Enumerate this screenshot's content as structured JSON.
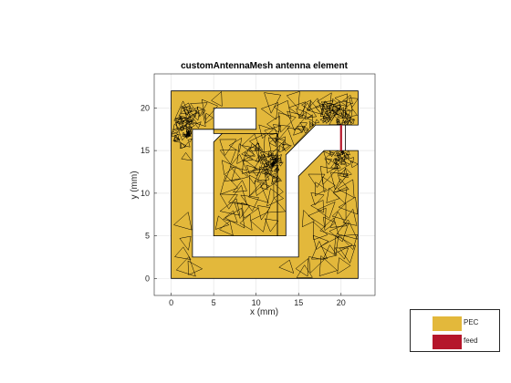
{
  "plot": {
    "title": "customAntennaMesh antenna element",
    "xlabel": "x (mm)",
    "ylabel": "y (mm)",
    "xlim": [
      -2,
      24
    ],
    "ylim": [
      -2,
      24
    ],
    "xticks": [
      "0",
      "5",
      "10",
      "15",
      "20"
    ],
    "xtick_values": [
      0,
      5,
      10,
      15,
      20
    ],
    "yticks": [
      "0",
      "5",
      "10",
      "15",
      "20"
    ],
    "ytick_values": [
      0,
      5,
      10,
      15,
      20
    ],
    "grid": true
  },
  "legend": {
    "placement": "bottom-right",
    "items": [
      {
        "label": "PEC",
        "color": "#e3b83b"
      },
      {
        "label": "feed",
        "color": "#b5162b"
      }
    ]
  },
  "antenna": {
    "pec_color": "#e3b83b",
    "feed_color": "#b5162b",
    "mesh_color": "#000000",
    "outer_polygon": [
      [
        0,
        0
      ],
      [
        22,
        0
      ],
      [
        22,
        15
      ],
      [
        20.5,
        15
      ],
      [
        20.5,
        18
      ],
      [
        22,
        18
      ],
      [
        22,
        22
      ],
      [
        0,
        22
      ]
    ],
    "holes": [
      [
        [
          2.5,
          2.5
        ],
        [
          15,
          2.5
        ],
        [
          15,
          12
        ],
        [
          18,
          15
        ],
        [
          20.5,
          15
        ],
        [
          20.5,
          18
        ],
        [
          17,
          18
        ],
        [
          13.5,
          14.5
        ],
        [
          13.5,
          5
        ],
        [
          12.5,
          5
        ],
        [
          12.5,
          17
        ],
        [
          5,
          17
        ],
        [
          5,
          20
        ],
        [
          10,
          20
        ],
        [
          10,
          17.5
        ],
        [
          2.5,
          17.5
        ]
      ]
    ],
    "inner_patch": [
      [
        5,
        5
      ],
      [
        12.5,
        5
      ],
      [
        12.5,
        17
      ],
      [
        6,
        17
      ],
      [
        5,
        16
      ]
    ],
    "feed_segment": [
      [
        20,
        15
      ],
      [
        20,
        18
      ]
    ],
    "dense_points": [
      [
        12,
        13.5
      ],
      [
        17.5,
        17.5
      ],
      [
        20,
        18
      ],
      [
        20,
        15
      ],
      [
        2,
        17
      ]
    ]
  }
}
